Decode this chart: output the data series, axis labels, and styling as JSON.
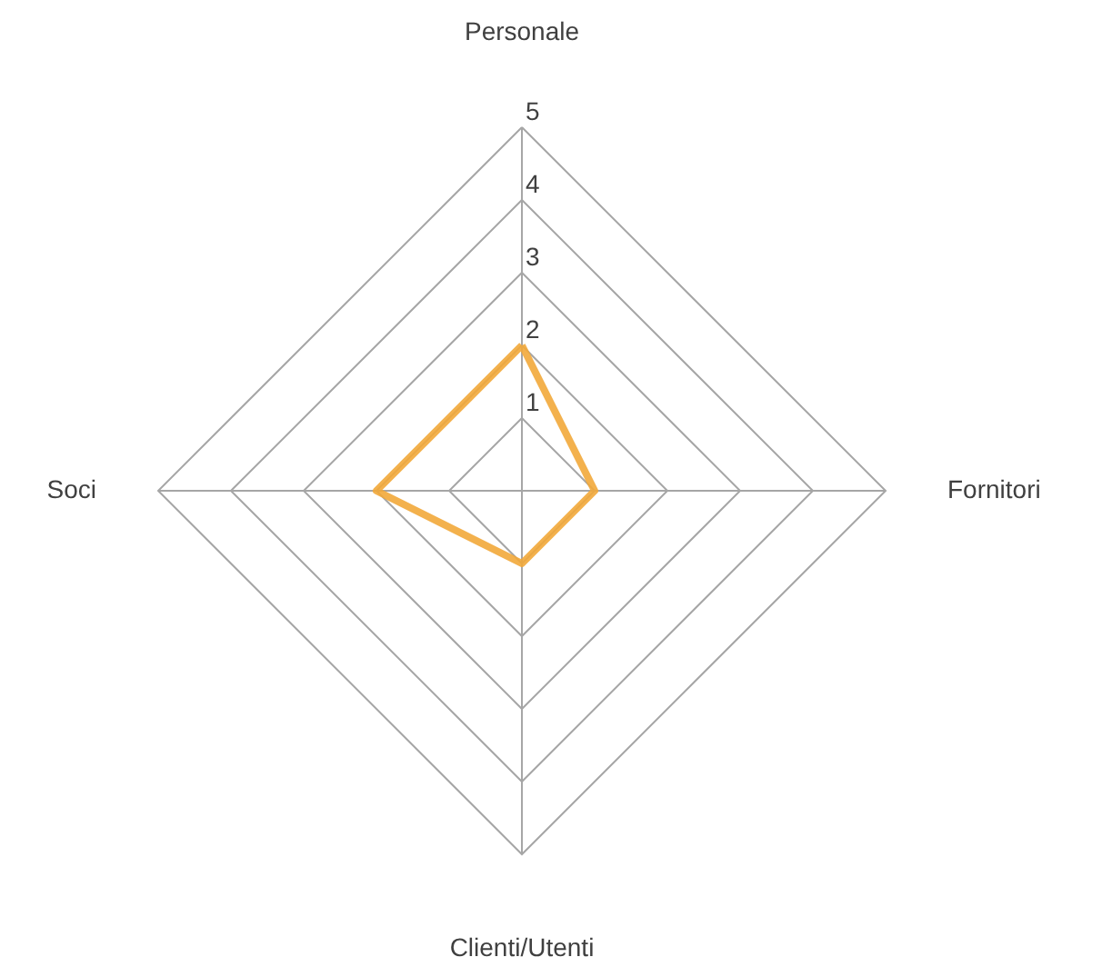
{
  "chart_data": {
    "type": "radar",
    "categories": [
      "Personale",
      "Fornitori",
      "Clienti/Utenti",
      "Soci"
    ],
    "series": [
      {
        "color": "#f2a83a",
        "values": [
          2,
          1,
          1,
          2
        ]
      }
    ],
    "ylim": [
      0,
      5
    ],
    "yticks": [
      1,
      2,
      3,
      4,
      5
    ],
    "grid": true
  }
}
